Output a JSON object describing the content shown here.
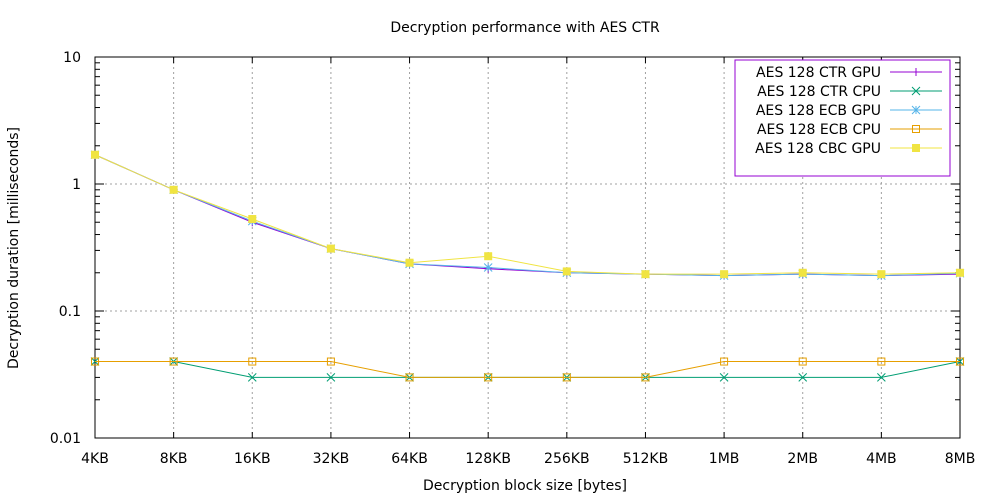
{
  "chart_data": {
    "type": "line",
    "title": "Decryption performance with AES CTR",
    "xlabel": "Decryption block size [bytes]",
    "ylabel": "Decryption duration [milliseconds]",
    "yscale": "log",
    "ylim": [
      0.01,
      10
    ],
    "yticks": [
      "10",
      "1",
      "0.1",
      "0.01"
    ],
    "categories": [
      "4KB",
      "8KB",
      "16KB",
      "32KB",
      "64KB",
      "128KB",
      "256KB",
      "512KB",
      "1MB",
      "2MB",
      "4MB",
      "8MB"
    ],
    "grid": true,
    "legend_position": "top-right",
    "series": [
      {
        "name": "AES 128 CTR GPU",
        "color": "#9400d3",
        "marker": "plus",
        "values": [
          1.7,
          0.9,
          0.5,
          0.31,
          0.235,
          0.215,
          0.2,
          0.195,
          0.19,
          0.195,
          0.19,
          0.195
        ]
      },
      {
        "name": "AES 128 CTR CPU",
        "color": "#009e73",
        "marker": "cross",
        "values": [
          0.04,
          0.04,
          0.03,
          0.03,
          0.03,
          0.03,
          0.03,
          0.03,
          0.03,
          0.03,
          0.03,
          0.04
        ]
      },
      {
        "name": "AES 128 ECB GPU",
        "color": "#56b4e9",
        "marker": "star",
        "values": [
          1.7,
          0.9,
          0.51,
          0.31,
          0.235,
          0.22,
          0.2,
          0.195,
          0.19,
          0.195,
          0.19,
          0.198
        ]
      },
      {
        "name": "AES 128 ECB CPU",
        "color": "#e69f00",
        "marker": "open-square",
        "values": [
          0.04,
          0.04,
          0.04,
          0.04,
          0.03,
          0.03,
          0.03,
          0.03,
          0.04,
          0.04,
          0.04,
          0.04
        ]
      },
      {
        "name": "AES 128 CBC GPU",
        "color": "#f0e442",
        "marker": "filled-square",
        "values": [
          1.7,
          0.9,
          0.53,
          0.31,
          0.24,
          0.27,
          0.205,
          0.195,
          0.195,
          0.2,
          0.195,
          0.2
        ]
      }
    ]
  }
}
